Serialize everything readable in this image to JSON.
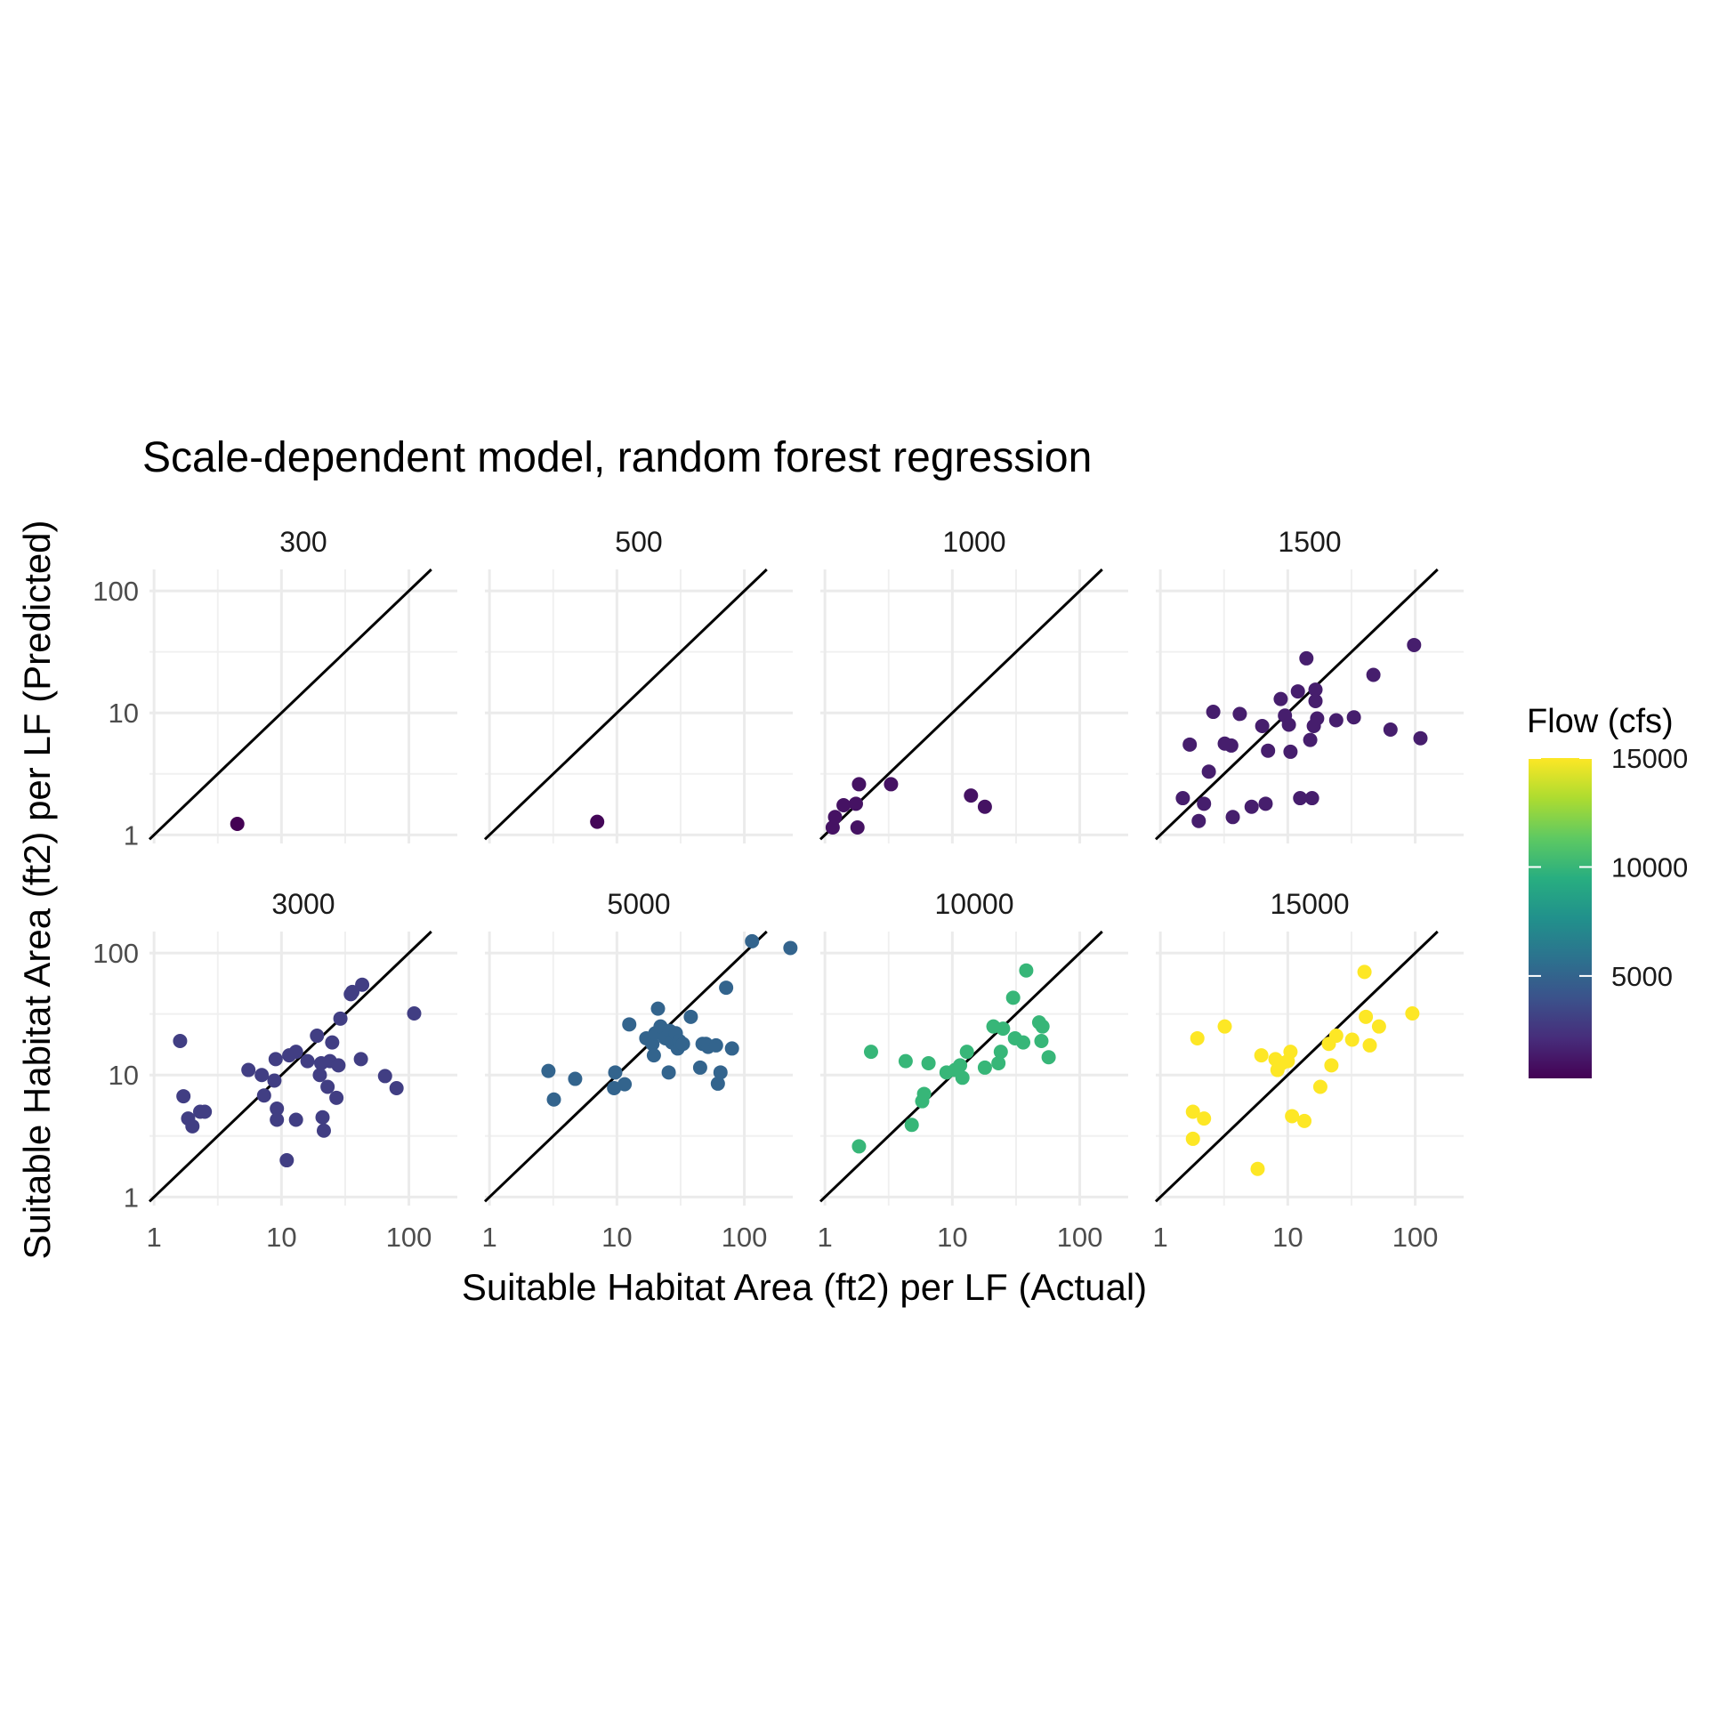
{
  "chart_data": {
    "type": "scatter",
    "title": "Scale-dependent model, random forest regression",
    "xlabel": "Suitable Habitat Area (ft2) per LF (Actual)",
    "ylabel": "Suitable Habitat Area (ft2) per LF (Predicted)",
    "x_scale": "log10",
    "y_scale": "log10",
    "xlim": [
      0.92,
      240
    ],
    "ylim": [
      0.85,
      150
    ],
    "x_ticks": [
      "1",
      "10",
      "100"
    ],
    "y_ticks": [
      "1",
      "10",
      "100"
    ],
    "reference_line": "y = x",
    "grid": true,
    "legend": {
      "title": "Flow (cfs)",
      "type": "colorbar",
      "palette": "viridis",
      "range": [
        300,
        15000
      ],
      "labels": [
        "15000",
        "10000",
        "5000"
      ],
      "placement": "right"
    },
    "facets": [
      {
        "label": "300",
        "flow": 300,
        "points": [
          [
            4.5,
            1.23
          ]
        ]
      },
      {
        "label": "500",
        "flow": 500,
        "points": [
          [
            7.0,
            1.28
          ]
        ]
      },
      {
        "label": "1000",
        "flow": 1000,
        "points": [
          [
            1.15,
            1.15
          ],
          [
            1.2,
            1.4
          ],
          [
            1.4,
            1.75
          ],
          [
            1.75,
            1.8
          ],
          [
            1.85,
            2.6
          ],
          [
            1.8,
            1.15
          ],
          [
            3.3,
            2.6
          ],
          [
            14,
            2.1
          ],
          [
            18,
            1.7
          ]
        ]
      },
      {
        "label": "1500",
        "flow": 1500,
        "points": [
          [
            1.5,
            2.0
          ],
          [
            1.7,
            5.5
          ],
          [
            2.0,
            1.3
          ],
          [
            2.2,
            1.8
          ],
          [
            2.4,
            3.3
          ],
          [
            2.6,
            10.2
          ],
          [
            3.2,
            5.6
          ],
          [
            3.6,
            5.4
          ],
          [
            3.7,
            1.4
          ],
          [
            4.2,
            9.8
          ],
          [
            5.2,
            1.7
          ],
          [
            6.3,
            7.8
          ],
          [
            6.7,
            1.8
          ],
          [
            7.0,
            4.9
          ],
          [
            8.8,
            13.0
          ],
          [
            9.5,
            9.5
          ],
          [
            10.2,
            8.0
          ],
          [
            10.5,
            4.8
          ],
          [
            12.0,
            15.0
          ],
          [
            12.5,
            2.0
          ],
          [
            14.0,
            28.0
          ],
          [
            15.0,
            6.0
          ],
          [
            15.5,
            2.0
          ],
          [
            16.0,
            7.8
          ],
          [
            16.5,
            12.5
          ],
          [
            16.5,
            15.5
          ],
          [
            17.0,
            9.0
          ],
          [
            24.0,
            8.7
          ],
          [
            33.0,
            9.2
          ],
          [
            47.0,
            20.5
          ],
          [
            64.0,
            7.3
          ],
          [
            98.0,
            36.0
          ],
          [
            110.0,
            6.2
          ]
        ]
      },
      {
        "label": "3000",
        "flow": 3000,
        "points": [
          [
            1.6,
            19.0
          ],
          [
            1.7,
            6.7
          ],
          [
            1.85,
            4.4
          ],
          [
            2.0,
            3.8
          ],
          [
            2.3,
            5.0
          ],
          [
            2.5,
            5.0
          ],
          [
            5.5,
            11.0
          ],
          [
            7.0,
            10.0
          ],
          [
            7.3,
            6.8
          ],
          [
            8.8,
            9.0
          ],
          [
            9.0,
            13.5
          ],
          [
            9.2,
            5.3
          ],
          [
            9.2,
            4.3
          ],
          [
            11.0,
            2.0
          ],
          [
            11.5,
            14.5
          ],
          [
            13.0,
            15.5
          ],
          [
            13.0,
            4.3
          ],
          [
            16.0,
            13.0
          ],
          [
            19.0,
            21.0
          ],
          [
            20.0,
            10.0
          ],
          [
            20.5,
            12.5
          ],
          [
            21.0,
            4.5
          ],
          [
            21.5,
            3.5
          ],
          [
            23.0,
            8.0
          ],
          [
            24.0,
            13.0
          ],
          [
            25.0,
            18.5
          ],
          [
            27.0,
            6.5
          ],
          [
            28.0,
            12.0
          ],
          [
            29.0,
            29.0
          ],
          [
            35.0,
            46.0
          ],
          [
            36.0,
            48.0
          ],
          [
            43.0,
            55.0
          ],
          [
            42.0,
            13.5
          ],
          [
            65.0,
            9.8
          ],
          [
            80.0,
            7.8
          ],
          [
            110.0,
            32.0
          ]
        ]
      },
      {
        "label": "5000",
        "flow": 5000,
        "points": [
          [
            2.9,
            10.8
          ],
          [
            3.2,
            6.3
          ],
          [
            4.7,
            9.3
          ],
          [
            9.5,
            7.8
          ],
          [
            9.7,
            10.5
          ],
          [
            11.5,
            8.4
          ],
          [
            12.5,
            26.0
          ],
          [
            17.0,
            20.0
          ],
          [
            19.0,
            18.0
          ],
          [
            19.5,
            14.5
          ],
          [
            20.0,
            22.0
          ],
          [
            21.0,
            35.0
          ],
          [
            22.0,
            25.0
          ],
          [
            24.0,
            20.0
          ],
          [
            25.5,
            10.5
          ],
          [
            26.0,
            23.0
          ],
          [
            27.0,
            18.5
          ],
          [
            29.0,
            22.0
          ],
          [
            30.0,
            16.5
          ],
          [
            31.0,
            19.0
          ],
          [
            33.0,
            18.0
          ],
          [
            38.0,
            30.0
          ],
          [
            45.0,
            11.5
          ],
          [
            47.0,
            18.0
          ],
          [
            50.0,
            18.0
          ],
          [
            52.0,
            17.0
          ],
          [
            60.0,
            17.5
          ],
          [
            62.0,
            8.5
          ],
          [
            65.0,
            10.5
          ],
          [
            72.0,
            52.0
          ],
          [
            80.0,
            16.5
          ],
          [
            115.0,
            125.0
          ],
          [
            230.0,
            110.0
          ]
        ]
      },
      {
        "label": "10000",
        "flow": 10000,
        "points": [
          [
            1.85,
            2.6
          ],
          [
            2.3,
            15.5
          ],
          [
            4.3,
            13.0
          ],
          [
            4.8,
            3.9
          ],
          [
            5.8,
            6.1
          ],
          [
            6.0,
            7.0
          ],
          [
            6.5,
            12.5
          ],
          [
            9.0,
            10.5
          ],
          [
            10.5,
            11.0
          ],
          [
            11.5,
            12.0
          ],
          [
            12.0,
            9.5
          ],
          [
            13.0,
            15.5
          ],
          [
            18.0,
            11.5
          ],
          [
            21.0,
            25.0
          ],
          [
            23.0,
            12.5
          ],
          [
            24.0,
            15.5
          ],
          [
            25.0,
            24.0
          ],
          [
            30.0,
            43.0
          ],
          [
            31.0,
            20.0
          ],
          [
            36.0,
            18.5
          ],
          [
            38.0,
            72.0
          ],
          [
            48.0,
            27.0
          ],
          [
            50.0,
            19.0
          ],
          [
            51.0,
            25.0
          ],
          [
            57.0,
            14.0
          ]
        ]
      },
      {
        "label": "15000",
        "flow": 15000,
        "points": [
          [
            1.8,
            5.0
          ],
          [
            1.8,
            3.0
          ],
          [
            1.95,
            20.0
          ],
          [
            2.2,
            4.4
          ],
          [
            3.2,
            25.0
          ],
          [
            5.8,
            1.7
          ],
          [
            6.2,
            14.5
          ],
          [
            8.0,
            13.5
          ],
          [
            8.3,
            11.0
          ],
          [
            8.5,
            12.0
          ],
          [
            9.0,
            12.5
          ],
          [
            10.0,
            13.0
          ],
          [
            10.5,
            15.5
          ],
          [
            10.8,
            4.6
          ],
          [
            13.5,
            4.2
          ],
          [
            18.0,
            8.0
          ],
          [
            21.0,
            18.0
          ],
          [
            22.0,
            12.0
          ],
          [
            24.0,
            21.0
          ],
          [
            32.0,
            19.5
          ],
          [
            40.0,
            70.0
          ],
          [
            41.0,
            30.0
          ],
          [
            44.0,
            17.5
          ],
          [
            52.0,
            25.0
          ],
          [
            95.0,
            32.0
          ]
        ]
      }
    ]
  }
}
